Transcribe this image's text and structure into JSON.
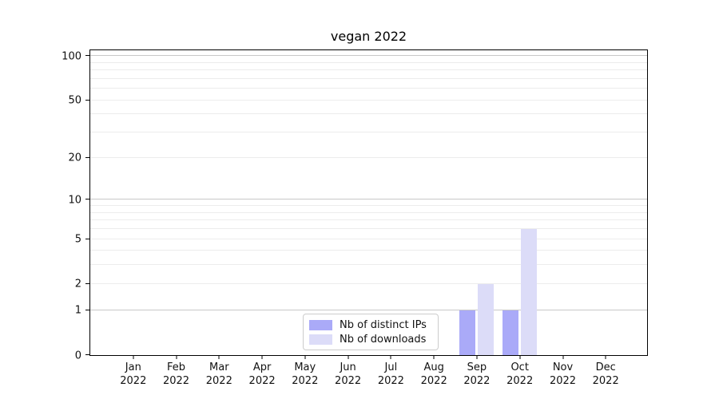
{
  "chart_data": {
    "type": "bar",
    "title": "vegan 2022",
    "categories": [
      "Jan",
      "Feb",
      "Mar",
      "Apr",
      "May",
      "Jun",
      "Jul",
      "Aug",
      "Sep",
      "Oct",
      "Nov",
      "Dec"
    ],
    "x_tick_second_line": "2022",
    "series": [
      {
        "name": "Nb of distinct IPs",
        "color": "#aaaaf8",
        "values": [
          0,
          0,
          0,
          0,
          0,
          0,
          0,
          0,
          1,
          1,
          0,
          0
        ]
      },
      {
        "name": "Nb of downloads",
        "color": "#dcdcf8",
        "values": [
          0,
          0,
          0,
          0,
          0,
          0,
          0,
          0,
          2,
          6,
          0,
          0
        ]
      }
    ],
    "y_scale": "log10(1+y)",
    "y_ticks": [
      0,
      1,
      2,
      5,
      10,
      20,
      50,
      100
    ],
    "y_major_gridlines": [
      1,
      10,
      100
    ],
    "y_minor_gridlines": [
      2,
      3,
      4,
      5,
      6,
      7,
      8,
      9,
      20,
      30,
      40,
      50,
      60,
      70,
      80,
      90,
      110
    ],
    "ylim": [
      0,
      112
    ],
    "xlabel": "",
    "ylabel": "",
    "grid": "horizontal",
    "legend_position": "lower center-left inside plot",
    "colors": {
      "axis": "#000000",
      "text": "#111111",
      "major_grid": "#c8c8c8",
      "minor_grid": "#ececec",
      "legend_border": "#cccccc",
      "background": "#ffffff"
    }
  }
}
